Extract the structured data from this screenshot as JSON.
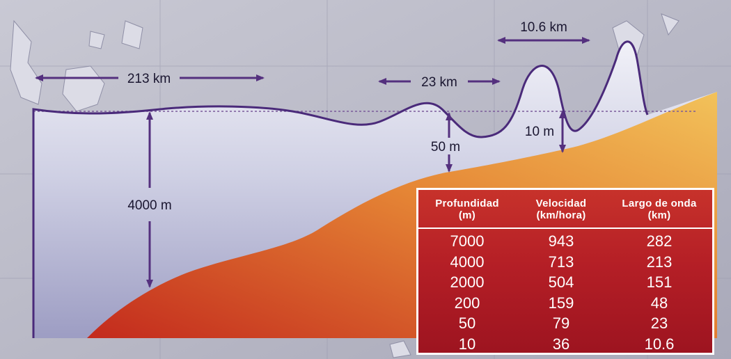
{
  "labels": {
    "wavelength_deep": "213 km",
    "wavelength_mid": "23 km",
    "wavelength_shallow": "10.6 km",
    "depth_deep": "4000 m",
    "depth_mid": "50 m",
    "depth_shallow": "10 m"
  },
  "colors": {
    "water": "#e9e9f3",
    "water_deep": "#a9a9c8",
    "outline": "#4a2a7a",
    "arrow": "#54307e",
    "seabed_top": "#f0b94e",
    "seabed_bottom": "#c41f1a",
    "table_bg": "#b51f26"
  },
  "table": {
    "headers": [
      {
        "line1": "Profundidad",
        "line2": "(m)"
      },
      {
        "line1": "Velocidad",
        "line2": "(km/hora)"
      },
      {
        "line1": "Largo de onda",
        "line2": "(km)"
      }
    ],
    "rows": [
      [
        "7000",
        "943",
        "282"
      ],
      [
        "4000",
        "713",
        "213"
      ],
      [
        "2000",
        "504",
        "151"
      ],
      [
        "200",
        "159",
        "48"
      ],
      [
        "50",
        "79",
        "23"
      ],
      [
        "10",
        "36",
        "10.6"
      ]
    ]
  }
}
